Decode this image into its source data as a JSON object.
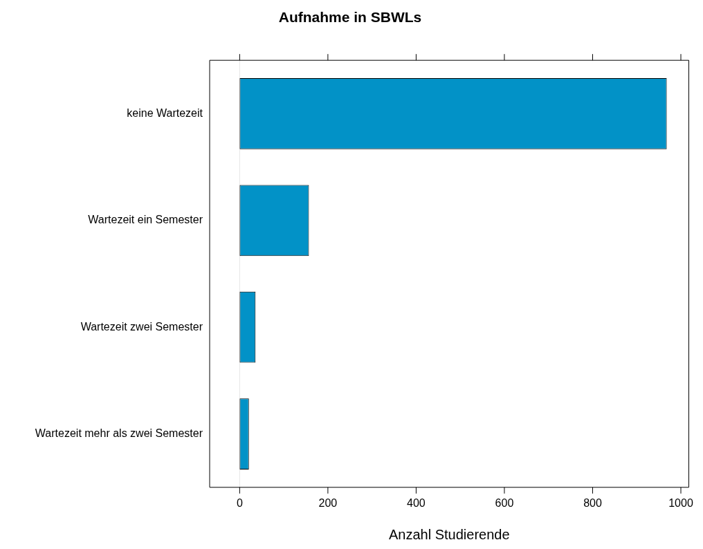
{
  "chart_data": {
    "type": "bar",
    "orientation": "horizontal",
    "title": "Aufnahme in SBWLs",
    "xlabel": "Anzahl Studierende",
    "categories": [
      "keine Wartezeit",
      "Wartezeit ein Semester",
      "Wartezeit zwei Semester",
      "Wartezeit mehr als zwei Semester"
    ],
    "values": [
      968,
      157,
      36,
      21
    ],
    "color": "#0292c7",
    "xlim": [
      -68,
      1018
    ],
    "xticks": [
      0,
      200,
      400,
      600,
      800,
      1000
    ],
    "grid": false,
    "legend": false,
    "ref_lines": [
      {
        "axis": "x",
        "value": 0,
        "color": "#e6e6e6"
      }
    ]
  }
}
